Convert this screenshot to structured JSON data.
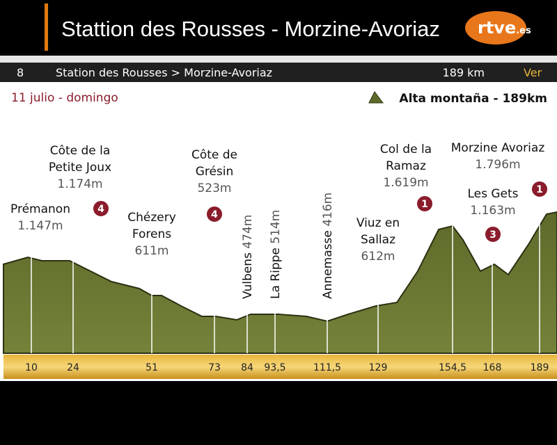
{
  "header": {
    "title": "Stattion des Rousses  - Morzine-Avoriaz",
    "logo": "rtve",
    "logo_suffix": ".es"
  },
  "bar": {
    "stage": "8",
    "route": "Station des Rousses > Morzine-Avoriaz",
    "distance": "189 km",
    "link": "Ver"
  },
  "date": "11 julio - domingo",
  "legend": "Alta montaña - 189km",
  "points": [
    {
      "name": [
        "Prémanon"
      ],
      "altitude": "1.147m",
      "km": "10"
    },
    {
      "name": [
        "Côte de la",
        "Petite Joux"
      ],
      "altitude": "1.174m",
      "category": "4",
      "km": "24"
    },
    {
      "name": [
        "Chézery",
        "Forens"
      ],
      "altitude": "611m",
      "km": "51"
    },
    {
      "name": [
        "Côte de",
        "Grésin"
      ],
      "altitude": "523m",
      "category": "4",
      "km": "73"
    },
    {
      "name": [
        "Vulbens"
      ],
      "altitude": "474m",
      "km": "84"
    },
    {
      "name": [
        "La Rippe"
      ],
      "altitude": "514m",
      "km": "93,5"
    },
    {
      "name": [
        "Annemasse"
      ],
      "altitude": "416m",
      "km": "111,5"
    },
    {
      "name": [
        "Viuz en",
        "Sallaz"
      ],
      "altitude": "612m",
      "km": "129"
    },
    {
      "name": [
        "Col de la",
        "Ramaz"
      ],
      "altitude": "1.619m",
      "category": "1",
      "km": "154,5"
    },
    {
      "name": [
        "Les Gets"
      ],
      "altitude": "1.163m",
      "category": "3",
      "km": "168"
    },
    {
      "name": [
        "Morzine Avoriaz"
      ],
      "altitude": "1.796m",
      "category": "1",
      "km": "189"
    }
  ]
}
